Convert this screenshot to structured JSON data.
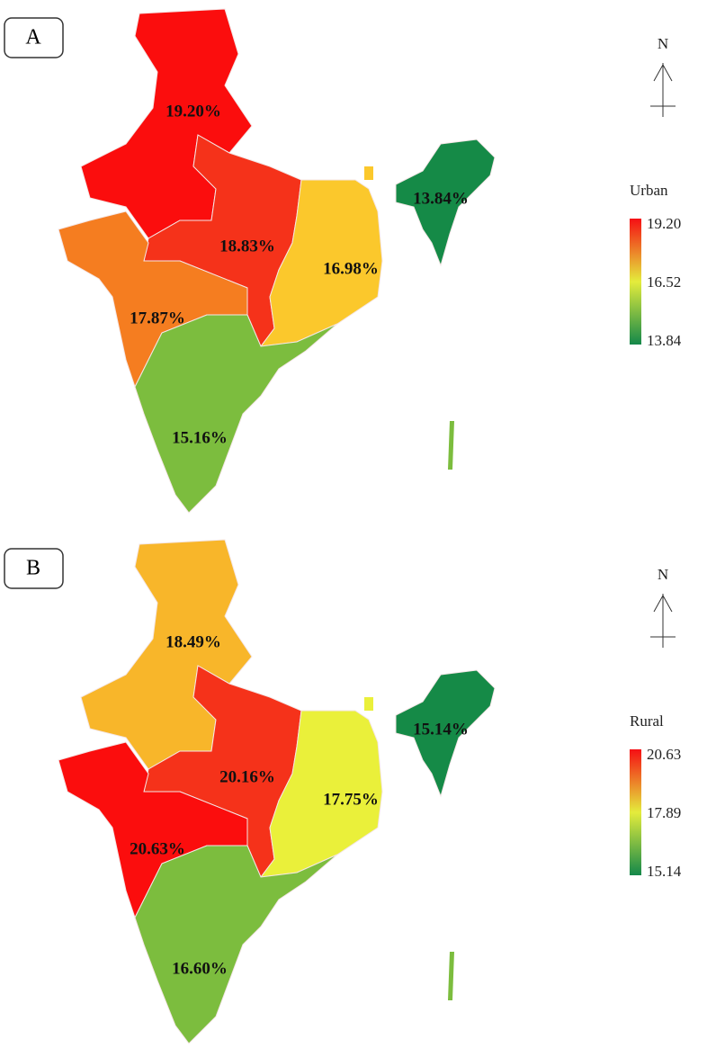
{
  "panels": [
    {
      "label": "A",
      "north": "N",
      "legend": {
        "title": "Urban",
        "ticks": [
          "19.20",
          "16.52",
          "13.84"
        ]
      },
      "regions": [
        {
          "name": "north",
          "label": "19.20%",
          "color": "#fb0d0d"
        },
        {
          "name": "central",
          "label": "18.83%",
          "color": "#f5321a"
        },
        {
          "name": "east",
          "label": "16.98%",
          "color": "#fbc82c"
        },
        {
          "name": "northeast",
          "label": "13.84%",
          "color": "#158a47"
        },
        {
          "name": "west",
          "label": "17.87%",
          "color": "#f57d20"
        },
        {
          "name": "south",
          "label": "15.16%",
          "color": "#7cbd3e"
        }
      ]
    },
    {
      "label": "B",
      "north": "N",
      "legend": {
        "title": "Rural",
        "ticks": [
          "20.63",
          "17.89",
          "15.14"
        ]
      },
      "regions": [
        {
          "name": "north",
          "label": "18.49%",
          "color": "#f8b62a"
        },
        {
          "name": "central",
          "label": "20.16%",
          "color": "#f5321a"
        },
        {
          "name": "east",
          "label": "17.75%",
          "color": "#eaf03a"
        },
        {
          "name": "northeast",
          "label": "15.14%",
          "color": "#158a47"
        },
        {
          "name": "west",
          "label": "20.63%",
          "color": "#fb0d0d"
        },
        {
          "name": "south",
          "label": "16.60%",
          "color": "#7cbd3e"
        }
      ]
    }
  ]
}
